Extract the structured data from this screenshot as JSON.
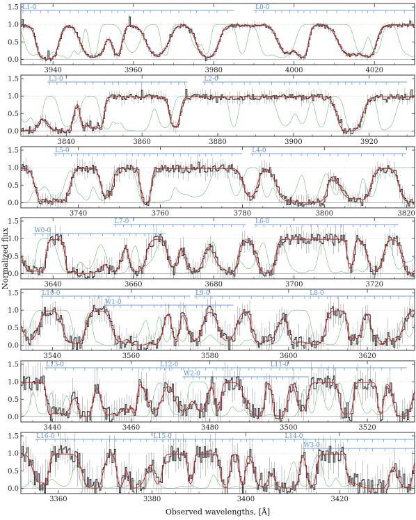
{
  "chart_data": {
    "type": "line",
    "xlabel": "Observed wavelengths, [Å]",
    "ylabel": "Normalized flux",
    "colors": {
      "data": "#3a3a3a",
      "model": "#d22020",
      "components": "#3aa84a",
      "bands": "#6d9ee0",
      "zero": "#9a9a9a"
    },
    "panels": [
      {
        "xlim": [
          3932,
          4030
        ],
        "ylim": [
          -0.15,
          1.6
        ],
        "xticks": [
          3940,
          3960,
          3980,
          4000,
          4020
        ],
        "yticks": [
          0.0,
          0.5,
          1.0,
          1.5
        ],
        "bands": [
          {
            "label": "L1-0",
            "start": 3932,
            "end": 3985
          },
          {
            "label": "L0-0",
            "start": 3990,
            "end": 4030
          }
        ]
      },
      {
        "xlim": [
          3828,
          3932
        ],
        "ylim": [
          -0.15,
          1.6
        ],
        "xticks": [
          3840,
          3860,
          3880,
          3900,
          3920
        ],
        "yticks": [
          0.0,
          0.5,
          1.0,
          1.5
        ],
        "bands": [
          {
            "label": "L3-0",
            "start": 3835,
            "end": 3872
          },
          {
            "label": "L2-0",
            "start": 3876,
            "end": 3930
          }
        ]
      },
      {
        "xlim": [
          3726,
          3822
        ],
        "ylim": [
          -0.15,
          1.6
        ],
        "xticks": [
          3740,
          3760,
          3780,
          3800,
          3820
        ],
        "yticks": [
          0.0,
          0.5,
          1.0,
          1.5
        ],
        "bands": [
          {
            "label": "L5-0",
            "start": 3734,
            "end": 3780
          },
          {
            "label": "L4-0",
            "start": 3782,
            "end": 3820
          }
        ]
      },
      {
        "xlim": [
          3632,
          3730
        ],
        "ylim": [
          -0.15,
          1.6
        ],
        "xticks": [
          3640,
          3660,
          3680,
          3700,
          3720
        ],
        "yticks": [
          0.0,
          0.5,
          1.0,
          1.5
        ],
        "bands": [
          {
            "label": "W0-0",
            "start": 3635,
            "end": 3668
          },
          {
            "label": "L7-0",
            "start": 3655,
            "end": 3688
          },
          {
            "label": "L6-0",
            "start": 3690,
            "end": 3726
          }
        ]
      },
      {
        "xlim": [
          3532,
          3632
        ],
        "ylim": [
          -0.15,
          1.6
        ],
        "xticks": [
          3540,
          3560,
          3580,
          3600,
          3620
        ],
        "yticks": [
          0.0,
          0.5,
          1.0,
          1.5
        ],
        "bands": [
          {
            "label": "L10-0",
            "start": 3537,
            "end": 3575
          },
          {
            "label": "W1-0",
            "start": 3553,
            "end": 3586
          },
          {
            "label": "L9-0",
            "start": 3576,
            "end": 3605
          },
          {
            "label": "L8-0",
            "start": 3605,
            "end": 3632
          }
        ]
      },
      {
        "xlim": [
          3432,
          3532
        ],
        "ylim": [
          -0.15,
          1.6
        ],
        "xticks": [
          3440,
          3460,
          3480,
          3500,
          3520
        ],
        "yticks": [
          0.0,
          0.5,
          1.0,
          1.5
        ],
        "bands": [
          {
            "label": "L13-0",
            "start": 3438,
            "end": 3475
          },
          {
            "label": "L12-0",
            "start": 3467,
            "end": 3495
          },
          {
            "label": "W2-0",
            "start": 3473,
            "end": 3505
          },
          {
            "label": "L11-0",
            "start": 3495,
            "end": 3530
          }
        ]
      },
      {
        "xlim": [
          3352,
          3436
        ],
        "ylim": [
          -0.15,
          1.6
        ],
        "xticks": [
          3360,
          3380,
          3400,
          3420
        ],
        "yticks": [
          0.0,
          0.5,
          1.0,
          1.5
        ],
        "bands": [
          {
            "label": "L16-0",
            "start": 3355,
            "end": 3390
          },
          {
            "label": "L15-0",
            "start": 3380,
            "end": 3408
          },
          {
            "label": "L14-0",
            "start": 3408,
            "end": 3436
          },
          {
            "label": "W3-0",
            "start": 3412,
            "end": 3436
          }
        ]
      }
    ]
  }
}
